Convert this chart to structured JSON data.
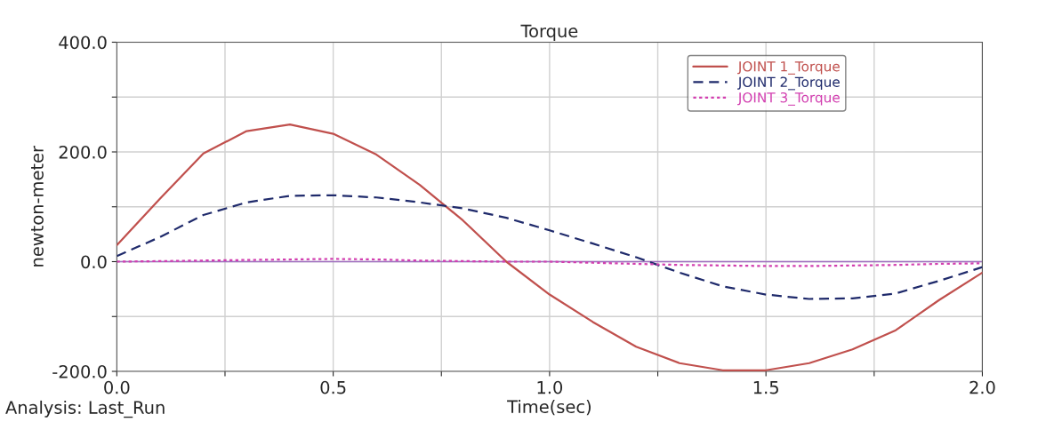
{
  "chart_data": {
    "type": "line",
    "title": "Torque",
    "xlabel": "Time(sec)",
    "ylabel": "newton-meter",
    "annotations": [
      "Analysis: Last_Run"
    ],
    "x": [
      0,
      0.1,
      0.2,
      0.3,
      0.4,
      0.5,
      0.6,
      0.7,
      0.8,
      0.9,
      1.0,
      1.1,
      1.2,
      1.3,
      1.4,
      1.5,
      1.6,
      1.7,
      1.8,
      1.9,
      2.0
    ],
    "series": [
      {
        "name": "JOINT 1_Torque",
        "color": "#c0504d",
        "line_style": "solid",
        "values": [
          30,
          115,
          197,
          238,
          250,
          233,
          195,
          140,
          75,
          0,
          -60,
          -110,
          -155,
          -185,
          -198,
          -198,
          -185,
          -160,
          -125,
          -70,
          -20
        ]
      },
      {
        "name": "JOINT 2_Torque",
        "color": "#1f2a6b",
        "line_style": "dashed",
        "values": [
          10,
          45,
          85,
          108,
          120,
          121,
          117,
          108,
          97,
          80,
          57,
          33,
          8,
          -20,
          -45,
          -60,
          -68,
          -67,
          -58,
          -35,
          -10
        ]
      },
      {
        "name": "JOINT 3_Torque",
        "color": "#d23fb0",
        "line_style": "dotted",
        "values": [
          0,
          1,
          2,
          3,
          4,
          5,
          4,
          2,
          1,
          0,
          0,
          -2,
          -4,
          -6,
          -7,
          -8,
          -8,
          -7,
          -6,
          -4,
          -3
        ]
      }
    ],
    "ref_lines": [
      {
        "axis": "y",
        "value": 0,
        "color": "#a070c0",
        "line_style": "solid"
      }
    ],
    "xlim": [
      0,
      2.0
    ],
    "xticks": [
      {
        "value": 0,
        "label": "0.0"
      },
      {
        "value": 0.25,
        "label": null
      },
      {
        "value": 0.5,
        "label": "0.5"
      },
      {
        "value": 0.75,
        "label": null
      },
      {
        "value": 1.0,
        "label": "1.0"
      },
      {
        "value": 1.25,
        "label": null
      },
      {
        "value": 1.5,
        "label": "1.5"
      },
      {
        "value": 1.75,
        "label": null
      },
      {
        "value": 2.0,
        "label": "2.0"
      }
    ],
    "ylim": [
      -200,
      400
    ],
    "yticks": [
      {
        "value": -200,
        "label": "-200.0"
      },
      {
        "value": -100,
        "label": null
      },
      {
        "value": 0,
        "label": "0.0"
      },
      {
        "value": 100,
        "label": null
      },
      {
        "value": 200,
        "label": "200.0"
      },
      {
        "value": 300,
        "label": null
      },
      {
        "value": 400,
        "label": "400.0"
      }
    ],
    "grid": true,
    "legend": "top right"
  }
}
